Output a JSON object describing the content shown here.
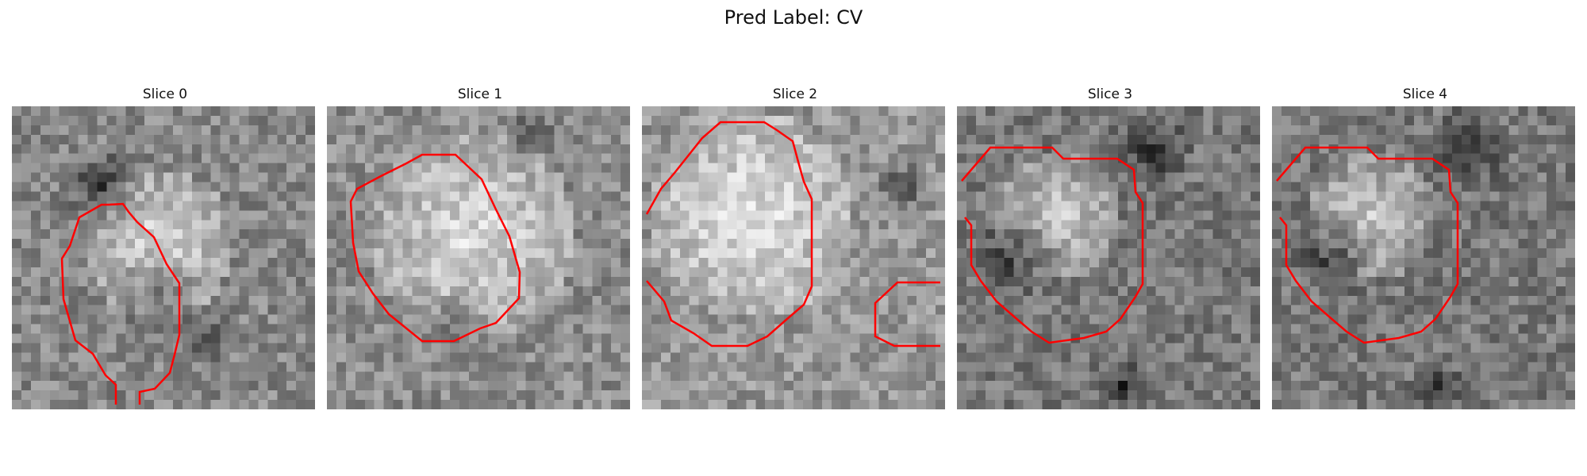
{
  "figure": {
    "title": "Pred Label: CV"
  },
  "panels": [
    {
      "title": "Slice 0"
    },
    {
      "title": "Slice 1"
    },
    {
      "title": "Slice 2"
    },
    {
      "title": "Slice 3"
    },
    {
      "title": "Slice 4"
    }
  ],
  "colors": {
    "contour": "#ff0000",
    "background": "#ffffff"
  },
  "image": {
    "grid_size": 32,
    "colormap": "gray"
  }
}
